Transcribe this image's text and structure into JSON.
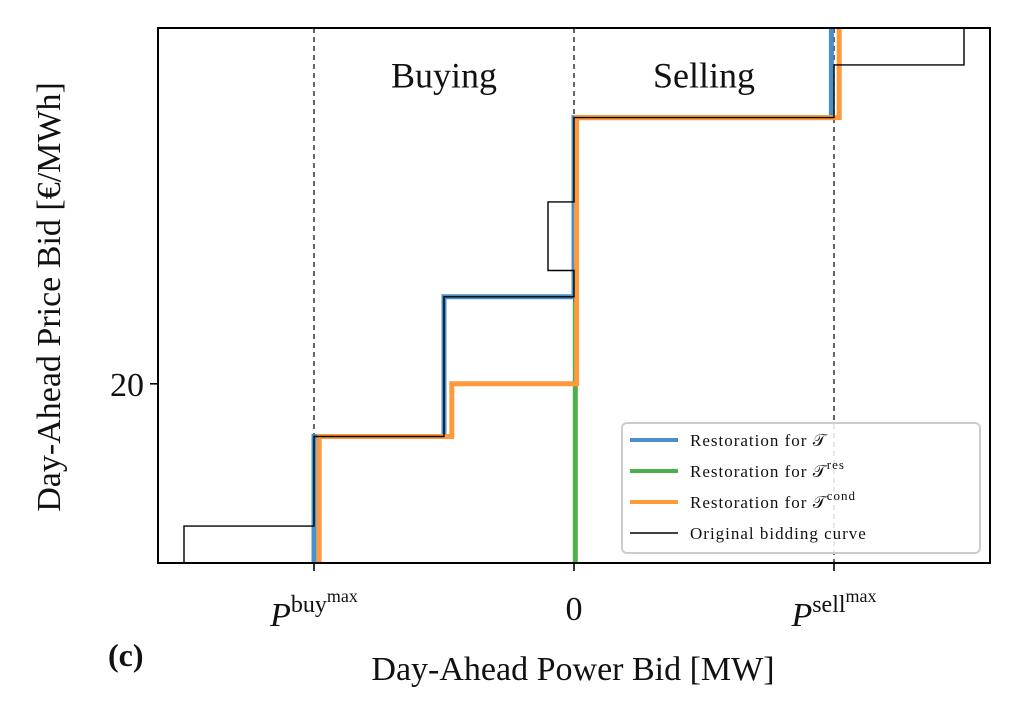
{
  "chart_data": {
    "type": "line",
    "panel_label": "(c)",
    "xlabel": "Day-Ahead Power Bid [MW]",
    "ylabel": "Day-Ahead Price Bid [€/MWh]",
    "xlim": [
      -1.6,
      1.6
    ],
    "ylim": [
      13.2,
      33.5
    ],
    "x_ticks": [
      {
        "value": -1,
        "base": "P",
        "sup": "buy",
        "supsup": "max"
      },
      {
        "value": 0,
        "label": "0"
      },
      {
        "value": 1,
        "base": "P",
        "sup": "sell",
        "supsup": "max"
      }
    ],
    "y_ticks": [
      {
        "value": 20,
        "label": "20"
      }
    ],
    "region_labels": [
      {
        "text": "Buying",
        "x": -0.5,
        "y": 31.7
      },
      {
        "text": "Selling",
        "x": 0.5,
        "y": 31.7
      }
    ],
    "vlines": [
      -1,
      0,
      1
    ],
    "legend_position": "bottom-right",
    "series": [
      {
        "name": "Restoration for 𝒯",
        "color": "#4a8fc7",
        "width": 5,
        "points": [
          [
            -1,
            13.2
          ],
          [
            -1,
            18
          ],
          [
            -0.5,
            18
          ],
          [
            -0.5,
            23.3
          ],
          [
            0,
            23.3
          ],
          [
            0,
            30.1
          ],
          [
            0.99,
            30.1
          ],
          [
            0.99,
            33.5
          ]
        ]
      },
      {
        "name": "Restoration for 𝒯",
        "sup": "res",
        "color": "#4daf4a",
        "width": 5,
        "points": [
          [
            0.005,
            13.2
          ],
          [
            0.005,
            23.1
          ]
        ]
      },
      {
        "name": "Restoration for 𝒯",
        "sup": "cond",
        "color": "#ff9a3c",
        "width": 5,
        "points": [
          [
            -0.98,
            13.2
          ],
          [
            -0.98,
            18
          ],
          [
            -0.47,
            18
          ],
          [
            -0.47,
            20
          ],
          [
            0.01,
            20
          ],
          [
            0.01,
            30.1
          ],
          [
            1.02,
            30.1
          ],
          [
            1.02,
            33.5
          ]
        ]
      },
      {
        "name": "Original bidding curve",
        "color": "#000000",
        "width": 1.4,
        "points": [
          [
            -1.5,
            13.2
          ],
          [
            -1.5,
            14.6
          ],
          [
            -1,
            14.6
          ],
          [
            -1,
            18
          ],
          [
            -0.5,
            18
          ],
          [
            -0.5,
            23.3
          ],
          [
            0,
            23.3
          ],
          [
            0,
            24.3
          ],
          [
            -0.1,
            24.3
          ],
          [
            -0.1,
            26.9
          ],
          [
            0,
            26.9
          ],
          [
            0,
            30.1
          ],
          [
            1,
            30.1
          ],
          [
            1,
            32.1
          ],
          [
            1.5,
            32.1
          ],
          [
            1.5,
            33.5
          ]
        ]
      }
    ]
  }
}
